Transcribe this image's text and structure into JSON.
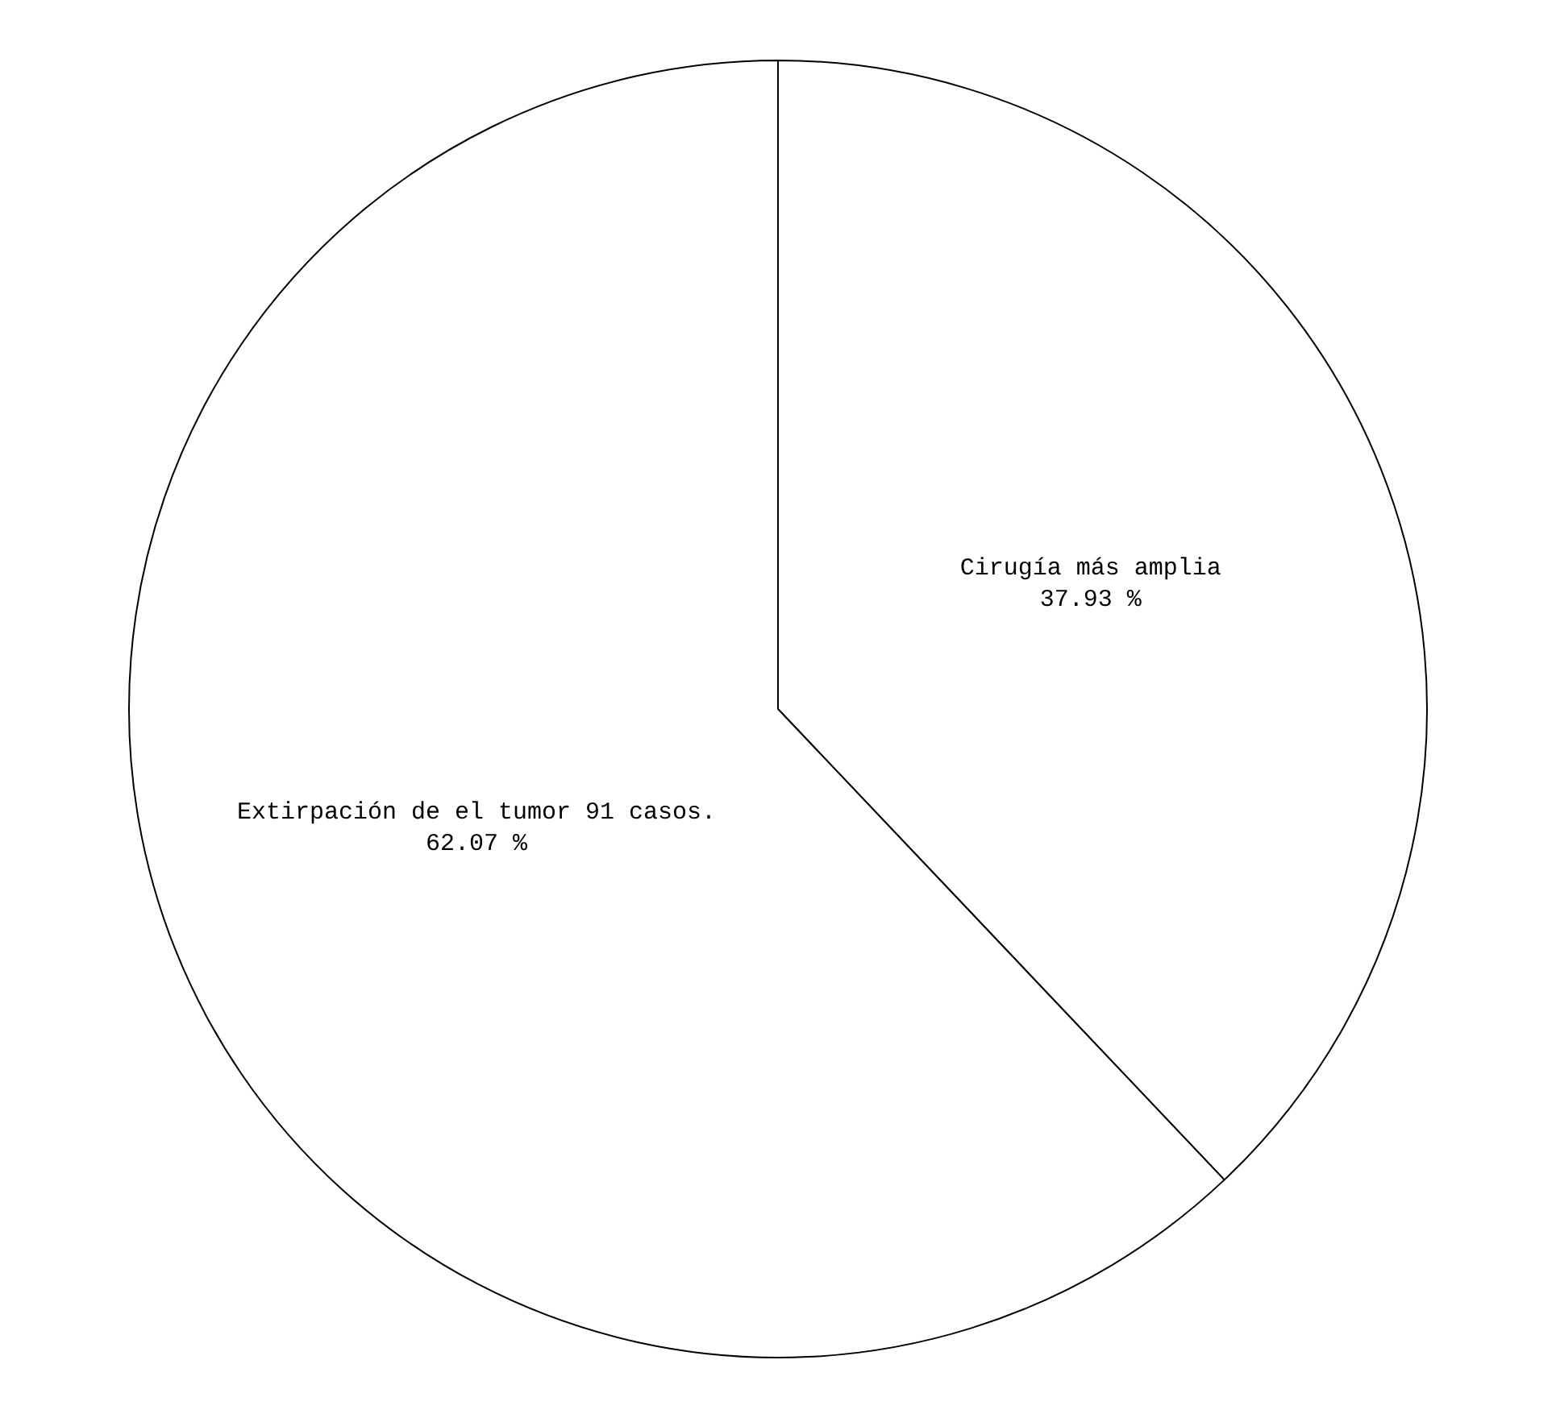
{
  "chart_data": {
    "type": "pie",
    "categories": [
      "Cirugía más amplia",
      "Extirpación de el tumor 91 casos."
    ],
    "values": [
      37.93,
      62.07
    ],
    "value_labels": [
      "37.93 %",
      "62.07 %"
    ],
    "colors": [
      "#ffffff",
      "#ffffff"
    ],
    "legend": false
  }
}
